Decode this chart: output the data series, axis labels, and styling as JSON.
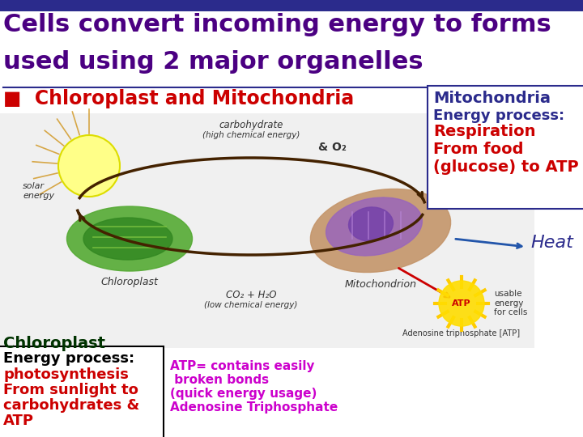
{
  "bg_color": "#ffffff",
  "header_bar_color": "#2b2b8c",
  "title_line1": "Cells convert incoming energy to forms",
  "title_line2": "used using 2 major organelles",
  "title_color": "#4b0082",
  "title_fontsize": 22,
  "subtitle": "■  Chloroplast and Mitochondria",
  "subtitle_color": "#cc0000",
  "subtitle_fontsize": 17,
  "mito_box_color": "#ffffff",
  "mito_box_border": "#2b2b8c",
  "mito_title": "Mitochondria",
  "mito_title_color": "#2b2b8c",
  "mito_ep": "Energy process:",
  "mito_ep_color": "#2b2b8c",
  "mito_detail1": "Respiration",
  "mito_detail2": "From food",
  "mito_detail3": "(glucose) to ATP",
  "mito_detail_color": "#cc0000",
  "mito_fontsize": 13,
  "chloro_box_color": "#ffffff",
  "chloro_box_border": "#000000",
  "chloro_title": "Chloroplast",
  "chloro_title_color": "#003300",
  "chloro_title_fontsize": 14,
  "chloro_ep": "Energy process:",
  "chloro_ep_color": "#000000",
  "chloro_detail1": "photosynthesis",
  "chloro_detail2": "From sunlight to",
  "chloro_detail3": "carbohydrates &",
  "chloro_detail4": "ATP",
  "chloro_detail_color": "#cc0000",
  "chloro_fontsize": 13,
  "atp_text1": "ATP= contains easily",
  "atp_text2": " broken bonds",
  "atp_text3": "(quick energy usage)",
  "atp_text4": "Adenosine Triphosphate",
  "atp_color": "#cc00cc",
  "atp_fontsize": 11,
  "heat_text": "Heat",
  "heat_color": "#2b2b8c",
  "heat_fontsize": 16,
  "carbo_text1": "carbohydrate",
  "carbo_text2": "(high chemical energy)",
  "o2_text": "& O₂",
  "co2_text1": "CO₂ + H₂O",
  "co2_text2": "(low chemical energy)",
  "solar_text": "solar\nenergy",
  "chloro_img_label": "Chloroplast",
  "mito_img_label": "Mitochondrion",
  "img_bg_color": "#f0f0f0",
  "line_color": "#2b2b8c"
}
